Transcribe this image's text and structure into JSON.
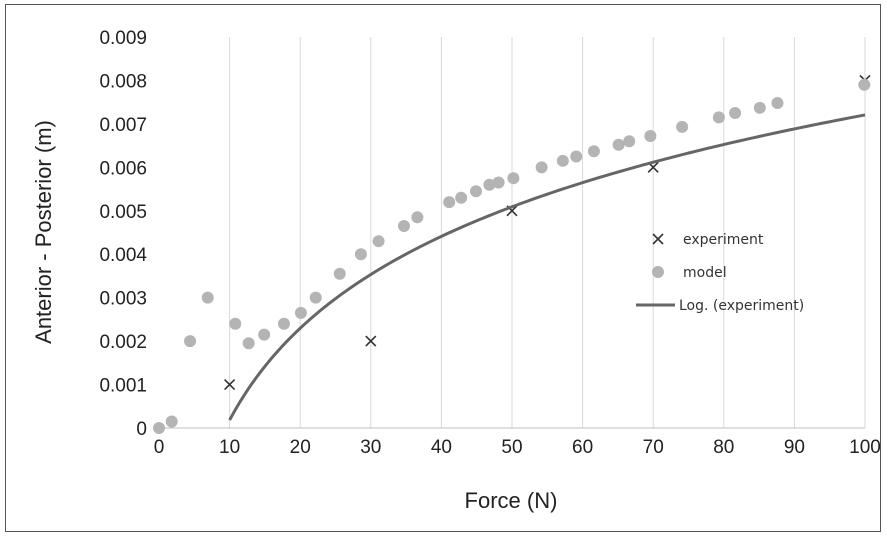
{
  "chart_data": {
    "type": "scatter",
    "xlabel": "Force (N)",
    "ylabel": "Anterior - Posterior (m)",
    "xlim": [
      0,
      100
    ],
    "ylim": [
      0,
      0.009
    ],
    "x_ticks": [
      "0",
      "10",
      "20",
      "30",
      "40",
      "50",
      "60",
      "70",
      "80",
      "90",
      "100"
    ],
    "y_ticks": [
      "0",
      "0.001",
      "0.002",
      "0.003",
      "0.004",
      "0.005",
      "0.006",
      "0.007",
      "0.008",
      "0.009"
    ],
    "grid": "vertical",
    "legend_position": "right",
    "series": [
      {
        "name": "experiment",
        "marker": "x",
        "color": "#333333",
        "points": [
          [
            10,
            0.001
          ],
          [
            30,
            0.002
          ],
          [
            50,
            0.005
          ],
          [
            70,
            0.006
          ],
          [
            100,
            0.008
          ]
        ]
      },
      {
        "name": "model",
        "marker": "circle",
        "color": "#b4b4b4",
        "points": [
          [
            0,
            0
          ],
          [
            1.8,
            0.00015
          ],
          [
            4.4,
            0.002
          ],
          [
            6.9,
            0.003
          ],
          [
            10.8,
            0.0024
          ],
          [
            12.7,
            0.00195
          ],
          [
            14.9,
            0.00215
          ],
          [
            17.7,
            0.0024
          ],
          [
            20.1,
            0.00265
          ],
          [
            22.2,
            0.003
          ],
          [
            25.6,
            0.00355
          ],
          [
            28.6,
            0.004
          ],
          [
            31.1,
            0.0043
          ],
          [
            34.7,
            0.00465
          ],
          [
            36.6,
            0.00485
          ],
          [
            41.1,
            0.0052
          ],
          [
            42.8,
            0.0053
          ],
          [
            44.9,
            0.00545
          ],
          [
            46.8,
            0.0056
          ],
          [
            48.1,
            0.00565
          ],
          [
            50.2,
            0.00575
          ],
          [
            54.2,
            0.006
          ],
          [
            57.2,
            0.00615
          ],
          [
            59.1,
            0.00625
          ],
          [
            61.6,
            0.00637
          ],
          [
            65.1,
            0.00652
          ],
          [
            66.6,
            0.0066
          ],
          [
            69.6,
            0.00672
          ],
          [
            74.1,
            0.00693
          ],
          [
            79.3,
            0.00715
          ],
          [
            81.6,
            0.00725
          ],
          [
            85.1,
            0.00737
          ],
          [
            87.6,
            0.00748
          ],
          [
            99.9,
            0.0079
          ]
        ]
      },
      {
        "name": "Log. (experiment)",
        "type": "line",
        "color": "#666666",
        "fit": {
          "kind": "log",
          "a": 0.00305,
          "b": -0.00684,
          "x_start": 10,
          "x_end": 100
        }
      }
    ]
  }
}
